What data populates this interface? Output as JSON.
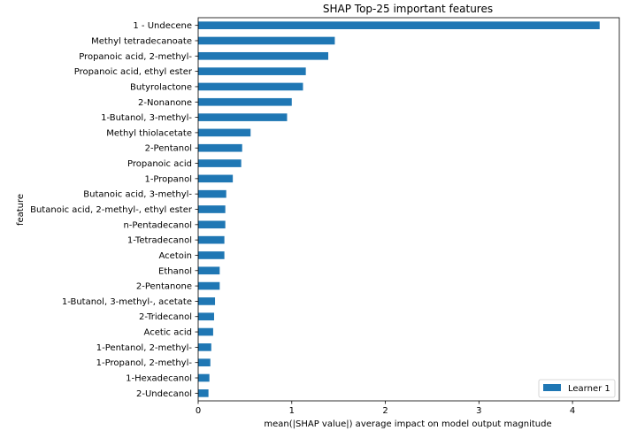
{
  "chart_data": {
    "type": "bar",
    "orientation": "horizontal",
    "title": "SHAP Top-25 important features",
    "xlabel": "mean(|SHAP value|) average impact on model output magnitude",
    "ylabel": "feature",
    "xlim": [
      0,
      4.5
    ],
    "x_ticks": [
      0,
      1,
      2,
      3,
      4
    ],
    "grid": false,
    "legend": {
      "placement": "lower-right",
      "entries": [
        "Learner 1"
      ]
    },
    "colors": {
      "bar": "#1f77b4"
    },
    "categories": [
      "1 - Undecene",
      "Methyl tetradecanoate",
      "Propanoic acid, 2-methyl-",
      "Propanoic acid, ethyl ester",
      "Butyrolactone",
      "2-Nonanone",
      "1-Butanol, 3-methyl-",
      "Methyl thiolacetate",
      "2-Pentanol",
      "Propanoic acid",
      "1-Propanol",
      "Butanoic acid, 3-methyl-",
      "Butanoic acid, 2-methyl-, ethyl ester",
      "n-Pentadecanol",
      "1-Tetradecanol",
      "Acetoin",
      "Ethanol",
      "2-Pentanone",
      "1-Butanol, 3-methyl-, acetate",
      "2-Tridecanol",
      "Acetic acid",
      "1-Pentanol, 2-methyl-",
      "1-Propanol, 2-methyl-",
      "1-Hexadecanol",
      "2-Undecanol"
    ],
    "series": [
      {
        "name": "Learner 1",
        "values": [
          4.29,
          1.46,
          1.39,
          1.15,
          1.12,
          1.0,
          0.95,
          0.56,
          0.47,
          0.46,
          0.37,
          0.3,
          0.29,
          0.29,
          0.28,
          0.28,
          0.23,
          0.23,
          0.18,
          0.17,
          0.16,
          0.14,
          0.13,
          0.12,
          0.11
        ]
      }
    ]
  }
}
